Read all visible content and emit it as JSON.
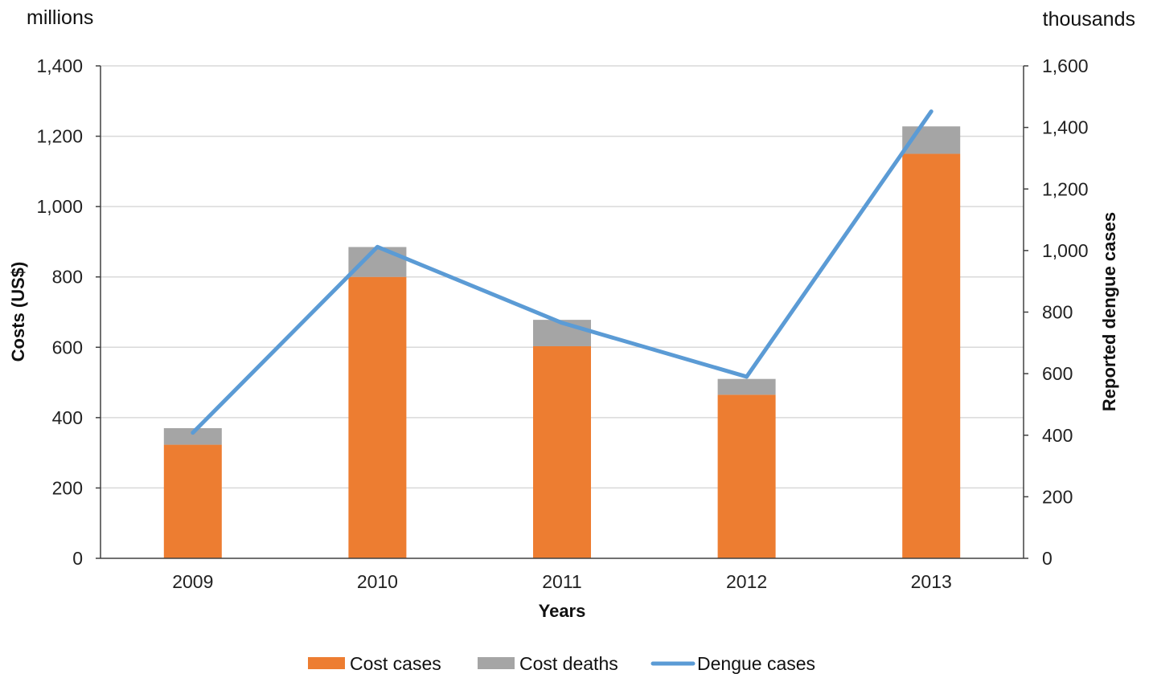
{
  "chart_data": {
    "type": "bar",
    "categories": [
      "2009",
      "2010",
      "2011",
      "2012",
      "2013"
    ],
    "series": [
      {
        "name": "Cost cases",
        "kind": "bar",
        "axis": "left",
        "stack": true,
        "color": "#ED7D31",
        "values": [
          323,
          800,
          603,
          465,
          1150
        ]
      },
      {
        "name": "Cost deaths",
        "kind": "bar",
        "axis": "left",
        "stack": true,
        "color": "#A5A5A5",
        "values": [
          47,
          85,
          75,
          45,
          78
        ]
      },
      {
        "name": "Dengue cases",
        "kind": "line",
        "axis": "right",
        "color": "#5B9BD5",
        "values": [
          408,
          1012,
          765,
          590,
          1452
        ]
      }
    ],
    "left_axis": {
      "label": "Costs (US$)",
      "unit_label": "millions",
      "ylim": [
        0,
        1400
      ],
      "ticks": [
        "0",
        "200",
        "400",
        "600",
        "800",
        "1,000",
        "1,200",
        "1,400"
      ],
      "tick_values": [
        0,
        200,
        400,
        600,
        800,
        1000,
        1200,
        1400
      ]
    },
    "right_axis": {
      "label": "Reported dengue cases",
      "unit_label": "thousands",
      "ylim": [
        0,
        1600
      ],
      "ticks": [
        "0",
        "200",
        "400",
        "600",
        "800",
        "1,000",
        "1,200",
        "1,400",
        "1,600"
      ],
      "tick_values": [
        0,
        200,
        400,
        600,
        800,
        1000,
        1200,
        1400,
        1600
      ]
    },
    "xlabel": "Years",
    "grid": true,
    "legend_position": "bottom"
  }
}
